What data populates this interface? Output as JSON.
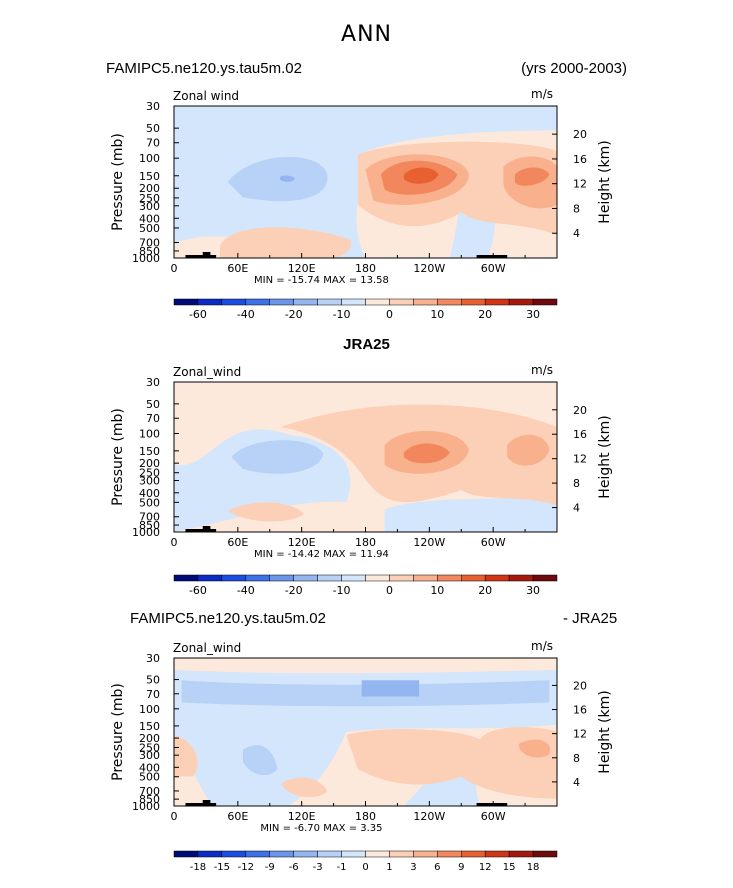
{
  "figure_title": "ANN",
  "chart_data": [
    {
      "type": "heatmap",
      "name": "model",
      "title_left": "FAMIPC5.ne120.ys.tau5m.02",
      "title_right": "(yrs 2000-2003)",
      "variable_label": "Zonal wind",
      "units": "m/s",
      "ylabel": "Pressure (mb)",
      "ylabel_right": "Height (km)",
      "pressure_ticks": [
        "30",
        "50",
        "70",
        "100",
        "150",
        "200",
        "250",
        "300",
        "400",
        "500",
        "700",
        "850",
        "1000"
      ],
      "height_ticks": [
        "20",
        "16",
        "12",
        "8",
        "4"
      ],
      "x_ticks": [
        "0",
        "60E",
        "120E",
        "180",
        "120W",
        "60W"
      ],
      "min_max": "MIN = -15.74   MAX =  13.58",
      "colorbar_labels": [
        "-60",
        "-40",
        "-20",
        "-10",
        "0",
        "10",
        "20",
        "30"
      ],
      "xlim": [
        0,
        360
      ],
      "ylim_mb": [
        1000,
        30
      ]
    },
    {
      "type": "heatmap",
      "name": "reference",
      "title_center": "JRA25",
      "variable_label": "Zonal_wind",
      "units": "m/s",
      "ylabel": "Pressure (mb)",
      "ylabel_right": "Height (km)",
      "pressure_ticks": [
        "30",
        "50",
        "70",
        "100",
        "150",
        "200",
        "250",
        "300",
        "400",
        "500",
        "700",
        "850",
        "1000"
      ],
      "height_ticks": [
        "20",
        "16",
        "12",
        "8",
        "4"
      ],
      "x_ticks": [
        "0",
        "60E",
        "120E",
        "180",
        "120W",
        "60W"
      ],
      "min_max": "MIN = -14.42   MAX =  11.94",
      "colorbar_labels": [
        "-60",
        "-40",
        "-20",
        "-10",
        "0",
        "10",
        "20",
        "30"
      ],
      "xlim": [
        0,
        360
      ],
      "ylim_mb": [
        1000,
        30
      ]
    },
    {
      "type": "heatmap",
      "name": "difference",
      "title_left": "FAMIPC5.ne120.ys.tau5m.02",
      "title_right": "- JRA25",
      "variable_label": "Zonal_wind",
      "units": "m/s",
      "ylabel": "Pressure (mb)",
      "ylabel_right": "Height (km)",
      "pressure_ticks": [
        "30",
        "50",
        "70",
        "100",
        "150",
        "200",
        "250",
        "300",
        "400",
        "500",
        "700",
        "850",
        "1000"
      ],
      "height_ticks": [
        "20",
        "16",
        "12",
        "8",
        "4"
      ],
      "x_ticks": [
        "0",
        "60E",
        "120E",
        "180",
        "120W",
        "60W"
      ],
      "min_max": "MIN =  -6.70   MAX =   3.35",
      "colorbar_labels": [
        "-18",
        "-15",
        "-12",
        "-9",
        "-6",
        "-3",
        "-1",
        "0",
        "1",
        "3",
        "6",
        "9",
        "12",
        "15",
        "18"
      ],
      "xlim": [
        0,
        360
      ],
      "ylim_mb": [
        1000,
        30
      ]
    }
  ],
  "colors": {
    "bg_zero": "#fde8dc",
    "neg1": "#d4e6fb",
    "neg2": "#b7d1f7",
    "neg3": "#93b6f1",
    "neg4": "#6b95ea",
    "pos1": "#fccfb7",
    "pos2": "#f8b08d",
    "pos3": "#f2875d",
    "pos4": "#e8602f",
    "land": "#000000",
    "colorbar": [
      "#000b7a",
      "#0a2cc5",
      "#1a4ee2",
      "#3d71ea",
      "#6b95ea",
      "#93b6f1",
      "#b7d1f7",
      "#d4e6fb",
      "#fde8dc",
      "#fccfb7",
      "#f8b08d",
      "#f2875d",
      "#e8602f",
      "#d13516",
      "#a41b0c",
      "#6e0a0a"
    ]
  }
}
